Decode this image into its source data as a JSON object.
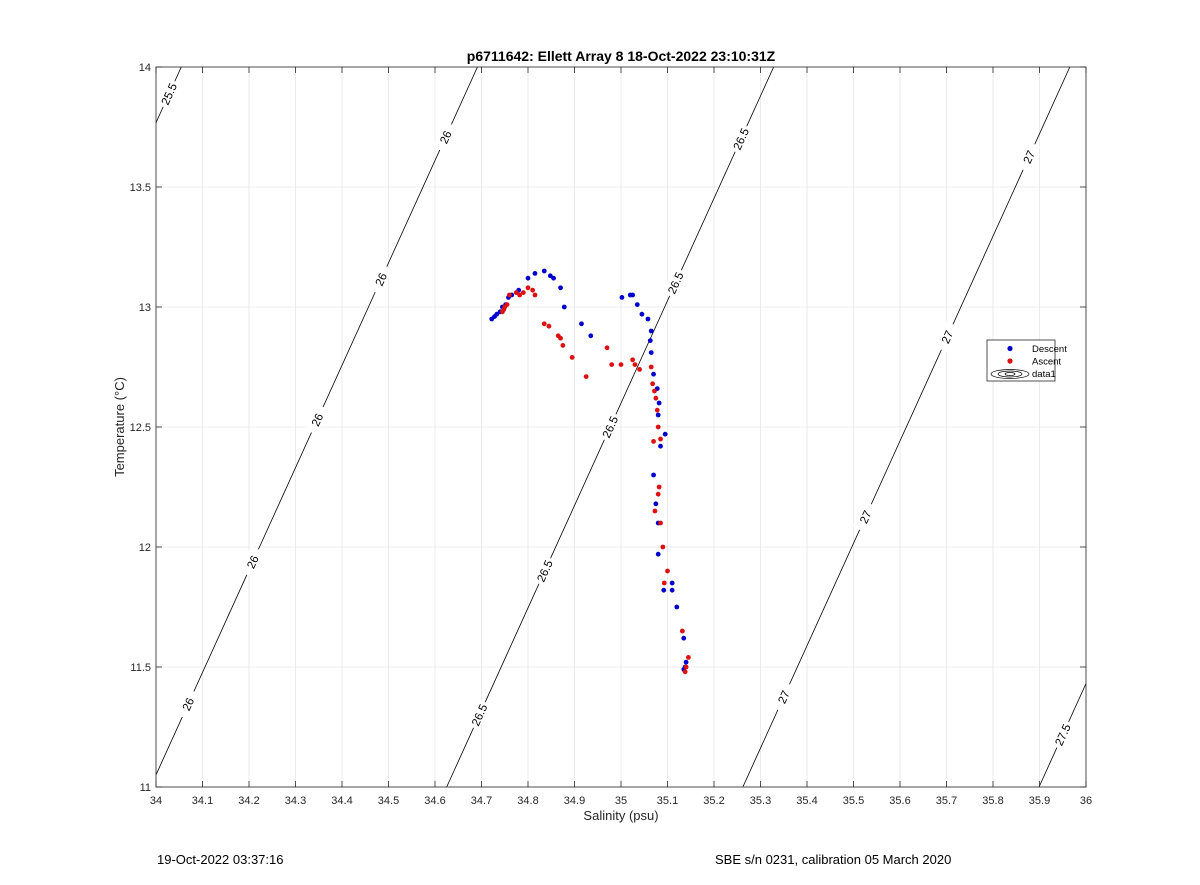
{
  "chart_data": {
    "type": "scatter",
    "title": "p6711642: Ellett Array 8 18-Oct-2022 23:10:31Z",
    "xlabel": "Salinity (psu)",
    "ylabel": "Temperature (°C)",
    "xlim": [
      34,
      36
    ],
    "ylim": [
      11,
      14
    ],
    "xticks": [
      "34",
      "34.1",
      "34.2",
      "34.3",
      "34.4",
      "34.5",
      "34.6",
      "34.7",
      "34.8",
      "34.9",
      "35",
      "35.1",
      "35.2",
      "35.3",
      "35.4",
      "35.5",
      "35.6",
      "35.7",
      "35.8",
      "35.9",
      "36"
    ],
    "yticks": [
      "11",
      "11.5",
      "12",
      "12.5",
      "13",
      "13.5",
      "14"
    ],
    "grid": true,
    "legend_position": "right",
    "legend": [
      "Descent",
      "Ascent",
      "data1"
    ],
    "series": [
      {
        "name": "Descent",
        "color": "#0000cc",
        "points": [
          [
            35.14,
            11.52
          ],
          [
            35.138,
            11.5
          ],
          [
            35.135,
            11.49
          ],
          [
            35.135,
            11.62
          ],
          [
            35.12,
            11.75
          ],
          [
            35.11,
            11.82
          ],
          [
            35.11,
            11.85
          ],
          [
            35.092,
            11.82
          ],
          [
            35.08,
            11.97
          ],
          [
            35.08,
            12.1
          ],
          [
            35.075,
            12.18
          ],
          [
            35.07,
            12.3
          ],
          [
            35.085,
            12.42
          ],
          [
            35.095,
            12.47
          ],
          [
            35.08,
            12.55
          ],
          [
            35.082,
            12.6
          ],
          [
            35.078,
            12.66
          ],
          [
            35.07,
            12.72
          ],
          [
            35.065,
            12.81
          ],
          [
            35.063,
            12.86
          ],
          [
            35.065,
            12.9
          ],
          [
            35.058,
            12.95
          ],
          [
            35.045,
            12.97
          ],
          [
            35.035,
            13.01
          ],
          [
            35.025,
            13.05
          ],
          [
            35.02,
            13.05
          ],
          [
            35.002,
            13.04
          ],
          [
            34.935,
            12.88
          ],
          [
            34.915,
            12.93
          ],
          [
            34.878,
            13.0
          ],
          [
            34.87,
            13.08
          ],
          [
            34.855,
            13.12
          ],
          [
            34.848,
            13.13
          ],
          [
            34.835,
            13.15
          ],
          [
            34.815,
            13.14
          ],
          [
            34.8,
            13.12
          ],
          [
            34.78,
            13.07
          ],
          [
            34.775,
            13.06
          ],
          [
            34.765,
            13.05
          ],
          [
            34.758,
            13.04
          ],
          [
            34.752,
            13.01
          ],
          [
            34.745,
            13.0
          ],
          [
            34.74,
            12.98
          ],
          [
            34.733,
            12.97
          ],
          [
            34.728,
            12.96
          ],
          [
            34.722,
            12.95
          ]
        ]
      },
      {
        "name": "Ascent",
        "color": "#dd1111",
        "points": [
          [
            35.145,
            11.54
          ],
          [
            35.14,
            11.5
          ],
          [
            35.138,
            11.48
          ],
          [
            35.132,
            11.65
          ],
          [
            35.1,
            11.9
          ],
          [
            35.093,
            11.85
          ],
          [
            35.09,
            12.0
          ],
          [
            35.085,
            12.1
          ],
          [
            35.08,
            12.22
          ],
          [
            35.082,
            12.25
          ],
          [
            35.073,
            12.15
          ],
          [
            35.085,
            12.45
          ],
          [
            35.07,
            12.44
          ],
          [
            35.08,
            12.5
          ],
          [
            35.078,
            12.57
          ],
          [
            35.075,
            12.62
          ],
          [
            35.072,
            12.65
          ],
          [
            35.068,
            12.68
          ],
          [
            35.065,
            12.75
          ],
          [
            35.04,
            12.74
          ],
          [
            35.03,
            12.76
          ],
          [
            35.025,
            12.78
          ],
          [
            35.0,
            12.76
          ],
          [
            34.98,
            12.76
          ],
          [
            34.97,
            12.83
          ],
          [
            34.925,
            12.71
          ],
          [
            34.895,
            12.79
          ],
          [
            34.875,
            12.84
          ],
          [
            34.87,
            12.87
          ],
          [
            34.865,
            12.88
          ],
          [
            34.845,
            12.92
          ],
          [
            34.835,
            12.93
          ],
          [
            34.815,
            13.05
          ],
          [
            34.81,
            13.07
          ],
          [
            34.8,
            13.08
          ],
          [
            34.79,
            13.06
          ],
          [
            34.782,
            13.05
          ],
          [
            34.775,
            13.06
          ],
          [
            34.76,
            13.05
          ],
          [
            34.755,
            13.01
          ],
          [
            34.75,
            13.0
          ],
          [
            34.748,
            12.99
          ],
          [
            34.745,
            12.98
          ]
        ]
      }
    ],
    "density_contours": [
      {
        "sigma": 25.5,
        "labels": [
          {
            "text": "25.5"
          }
        ]
      },
      {
        "sigma": 26,
        "labels": [
          {
            "text": "26"
          },
          {
            "text": "26"
          },
          {
            "text": "26"
          },
          {
            "text": "26"
          },
          {
            "text": "26"
          }
        ]
      },
      {
        "sigma": 26.5,
        "labels": [
          {
            "text": "26.5"
          },
          {
            "text": "26.5"
          },
          {
            "text": "26.5"
          },
          {
            "text": "26.5"
          },
          {
            "text": "26.5"
          }
        ]
      },
      {
        "sigma": 27,
        "labels": [
          {
            "text": "27"
          },
          {
            "text": "27"
          },
          {
            "text": "27"
          },
          {
            "text": "27"
          }
        ]
      },
      {
        "sigma": 27.5,
        "labels": [
          {
            "text": "27.5"
          }
        ]
      }
    ]
  },
  "footer": {
    "left": "19-Oct-2022 03:37:16",
    "right": "SBE s/n 0231, calibration 05 March 2020"
  }
}
